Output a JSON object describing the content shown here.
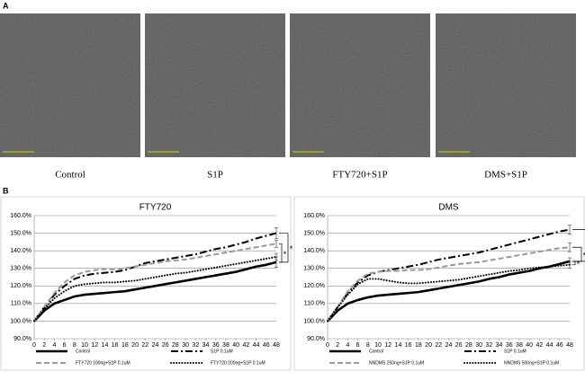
{
  "panel_labels": [
    "A",
    "B"
  ],
  "images": {
    "captions": [
      "Control",
      "S1P",
      "FTY720+S1P",
      "DMS+S1P"
    ]
  },
  "chart_data": [
    {
      "type": "line",
      "title": "FTY720",
      "legend": "bottom",
      "grid": true,
      "x": [
        0,
        2,
        4,
        6,
        8,
        10,
        12,
        14,
        16,
        18,
        20,
        22,
        24,
        26,
        28,
        30,
        32,
        34,
        36,
        38,
        40,
        42,
        44,
        46,
        48
      ],
      "xlim": [
        0,
        48
      ],
      "xticks": [
        0,
        2,
        4,
        6,
        8,
        10,
        12,
        14,
        16,
        18,
        20,
        22,
        24,
        26,
        28,
        30,
        32,
        34,
        36,
        38,
        40,
        42,
        44,
        46,
        48
      ],
      "ylim": [
        90,
        160
      ],
      "yticks": [
        {
          "value": 90,
          "label": "90.0%"
        },
        {
          "value": 100,
          "label": "100.0%"
        },
        {
          "value": 110,
          "label": "110.0%"
        },
        {
          "value": 120,
          "label": "120.0%"
        },
        {
          "value": 130,
          "label": "130.0%"
        },
        {
          "value": 140,
          "label": "140.0%"
        },
        {
          "value": 150,
          "label": "150.0%"
        },
        {
          "value": 160,
          "label": "160.0%"
        }
      ],
      "annotations": [
        "*",
        "*"
      ],
      "series": [
        {
          "name": "Control",
          "color": "#000000",
          "values": [
            100,
            106,
            110,
            112,
            114,
            115,
            115.5,
            116,
            116.5,
            117,
            118,
            119,
            120,
            121,
            122,
            123,
            124,
            125,
            126,
            127,
            128,
            129.5,
            131,
            132,
            133.5
          ],
          "errors": [
            null,
            null,
            null,
            null,
            null,
            null,
            null,
            null,
            null,
            null,
            null,
            null,
            null,
            null,
            null,
            null,
            null,
            null,
            null,
            null,
            null,
            null,
            null,
            null,
            3
          ]
        },
        {
          "name": "S1P 0.1uM",
          "color": "#000000",
          "values": [
            100,
            108,
            115,
            120,
            124,
            126,
            127,
            127.5,
            128,
            129,
            131,
            133,
            134,
            135,
            136,
            137,
            138,
            139.5,
            141,
            142,
            143.5,
            145,
            147,
            148.5,
            150
          ],
          "errors": [
            null,
            null,
            null,
            null,
            null,
            null,
            null,
            null,
            null,
            null,
            null,
            null,
            null,
            null,
            null,
            null,
            null,
            null,
            null,
            null,
            null,
            null,
            null,
            null,
            3
          ]
        },
        {
          "name": "FTY720 100ng+S1P 0.1uM",
          "color": "#999999",
          "values": [
            100,
            108,
            116,
            122,
            126,
            128,
            129,
            129.5,
            129.5,
            130,
            131,
            132,
            133,
            134,
            134.5,
            135,
            136,
            137,
            138,
            139,
            140,
            141,
            142,
            143,
            144
          ],
          "errors": [
            null,
            null,
            null,
            null,
            null,
            null,
            null,
            null,
            null,
            null,
            null,
            null,
            null,
            null,
            null,
            null,
            null,
            null,
            null,
            null,
            null,
            null,
            null,
            null,
            2
          ]
        },
        {
          "name": "FTY720 200ng+S1P 0.1uM",
          "color": "#000000",
          "values": [
            100,
            107,
            113,
            117,
            120,
            121,
            121.5,
            122,
            122,
            122.5,
            123,
            124,
            125,
            126,
            127,
            127.5,
            128.5,
            129.5,
            130.5,
            131.5,
            132.5,
            133.5,
            134.5,
            135.5,
            136.5
          ],
          "errors": [
            null,
            null,
            null,
            null,
            null,
            null,
            null,
            null,
            null,
            null,
            null,
            null,
            null,
            null,
            null,
            null,
            null,
            null,
            null,
            null,
            null,
            null,
            null,
            null,
            2
          ]
        }
      ]
    },
    {
      "type": "line",
      "title": "DMS",
      "legend": "bottom",
      "grid": true,
      "x": [
        0,
        2,
        4,
        6,
        8,
        10,
        12,
        14,
        16,
        18,
        20,
        22,
        24,
        26,
        28,
        30,
        32,
        34,
        36,
        38,
        40,
        42,
        44,
        46,
        48
      ],
      "xlim": [
        0,
        48
      ],
      "xticks": [
        0,
        2,
        4,
        6,
        8,
        10,
        12,
        14,
        16,
        18,
        20,
        22,
        24,
        26,
        28,
        30,
        32,
        34,
        36,
        38,
        40,
        42,
        44,
        46,
        48
      ],
      "ylim": [
        90,
        160
      ],
      "yticks": [
        {
          "value": 90,
          "label": "90.0%"
        },
        {
          "value": 100,
          "label": "100.0%"
        },
        {
          "value": 110,
          "label": "110.0%"
        },
        {
          "value": 120,
          "label": "120.0%"
        },
        {
          "value": 130,
          "label": "130.0%"
        },
        {
          "value": 140,
          "label": "140.0%"
        },
        {
          "value": 150,
          "label": "150.0%"
        },
        {
          "value": 160,
          "label": "160.0%"
        }
      ],
      "annotations": [
        "*",
        "*",
        "*"
      ],
      "series": [
        {
          "name": "Control",
          "color": "#000000",
          "values": [
            100,
            106,
            110,
            112,
            113.5,
            114.5,
            115,
            115.5,
            116,
            116.5,
            117.5,
            118.5,
            119.5,
            120.5,
            121.5,
            122.5,
            124,
            125,
            126.5,
            127.5,
            128.5,
            130,
            131,
            132.5,
            134
          ],
          "errors": [
            null,
            null,
            null,
            null,
            null,
            null,
            null,
            null,
            null,
            null,
            null,
            null,
            null,
            null,
            null,
            null,
            null,
            null,
            null,
            null,
            null,
            null,
            null,
            null,
            2
          ]
        },
        {
          "name": "S1P 0.1uM",
          "color": "#000000",
          "values": [
            100,
            108,
            116,
            122,
            126,
            128,
            129,
            130,
            131,
            132,
            133.5,
            135,
            136,
            137,
            138,
            139,
            140.5,
            142,
            143.5,
            145,
            146.5,
            148,
            149.5,
            151,
            152
          ],
          "errors": [
            null,
            null,
            null,
            null,
            null,
            null,
            null,
            null,
            null,
            null,
            null,
            null,
            null,
            null,
            null,
            null,
            null,
            null,
            null,
            null,
            null,
            null,
            null,
            null,
            2.5
          ]
        },
        {
          "name": "NNDMS 250ng+S1P 0.1uM",
          "color": "#999999",
          "values": [
            100,
            108,
            117,
            123,
            127,
            128,
            128.5,
            128.5,
            129,
            129,
            129.5,
            130.5,
            131.5,
            132.5,
            133,
            133.5,
            134.5,
            135.5,
            136.5,
            137.5,
            138.5,
            139.5,
            140.5,
            141.5,
            142
          ],
          "errors": [
            null,
            null,
            null,
            null,
            null,
            null,
            null,
            null,
            null,
            null,
            null,
            null,
            null,
            null,
            null,
            null,
            null,
            null,
            null,
            null,
            null,
            null,
            null,
            null,
            2.5
          ]
        },
        {
          "name": "NNDMS 500ng+S1P 0.1uM",
          "color": "#000000",
          "values": [
            100,
            108,
            115,
            121,
            124,
            124,
            123,
            122,
            121.5,
            121.5,
            122,
            122.5,
            123,
            123.5,
            124.5,
            125.5,
            126.5,
            127.5,
            128.5,
            129,
            130,
            130.5,
            131,
            131.5,
            132
          ],
          "errors": [
            null,
            null,
            null,
            null,
            null,
            null,
            null,
            null,
            null,
            null,
            null,
            null,
            null,
            null,
            null,
            null,
            null,
            null,
            null,
            null,
            null,
            null,
            null,
            null,
            2
          ]
        }
      ]
    }
  ]
}
